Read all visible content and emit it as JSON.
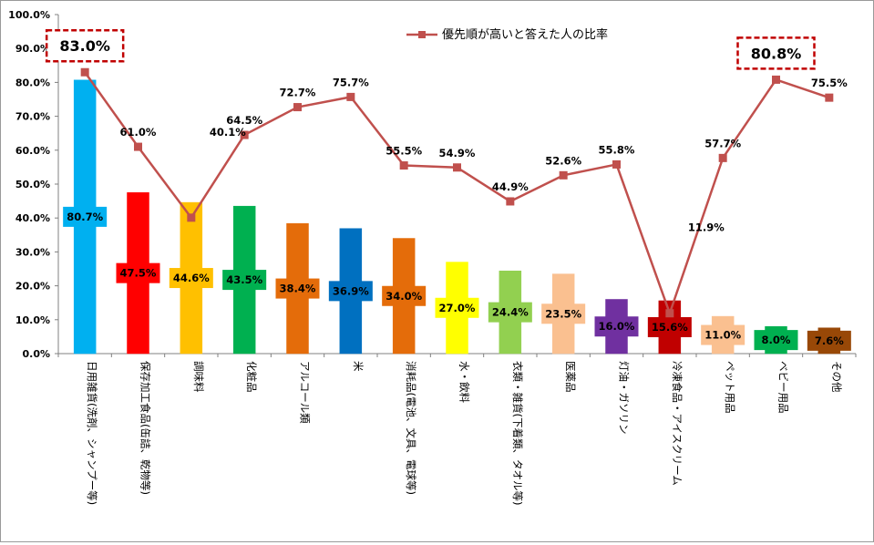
{
  "chart_data": {
    "type": "bar",
    "categories": [
      "日用雑貨(洗剤、シャンプー等)",
      "保存加工食品(缶詰、乾物等)",
      "調味料",
      "化粧品",
      "アルコール類",
      "米",
      "消耗品(電池、文具、電球等)",
      "水・飲料",
      "衣類・雑貨(下着類、タオル等)",
      "医薬品",
      "灯油・ガソリン",
      "冷凍食品・アイスクリーム",
      "ペット用品",
      "ベビー用品",
      "その他"
    ],
    "bar_values": [
      80.7,
      47.5,
      44.6,
      43.5,
      38.4,
      36.9,
      34.0,
      27.0,
      24.4,
      23.5,
      16.0,
      15.6,
      11.0,
      8.0,
      7.6
    ],
    "bar_labels": [
      "80.7%",
      "47.5%",
      "44.6%",
      "43.5%",
      "38.4%",
      "36.9%",
      "34.0%",
      "27.0%",
      "24.4%",
      "23.5%",
      "16.0%",
      "15.6%",
      "11.0%",
      "8.0%",
      "7.6%"
    ],
    "bar_colors": [
      "#00b0f0",
      "#ff0000",
      "#ffc000",
      "#00b050",
      "#e46c0a",
      "#0070c0",
      "#e46c0a",
      "#ffff00",
      "#92d050",
      "#fac090",
      "#7030a0",
      "#c00000",
      "#fac090",
      "#00b050",
      "#984807"
    ],
    "series": [
      {
        "name": "優先順が高いと答えた人の比率",
        "values": [
          83.0,
          61.0,
          40.1,
          64.5,
          72.7,
          75.7,
          55.5,
          54.9,
          44.9,
          52.6,
          55.8,
          11.9,
          57.7,
          80.8,
          75.5
        ],
        "labels": [
          "83.0%",
          "61.0%",
          "40.1%",
          "64.5%",
          "72.7%",
          "75.7%",
          "55.5%",
          "54.9%",
          "44.9%",
          "52.6%",
          "55.8%",
          "11.9%",
          "57.7%",
          "80.8%",
          "75.5%"
        ],
        "color": "#c0504d"
      }
    ],
    "highlighted_points": [
      0,
      13
    ],
    "callout_color": "#c00000",
    "y_ticks": [
      "0.0%",
      "10.0%",
      "20.0%",
      "30.0%",
      "40.0%",
      "50.0%",
      "60.0%",
      "70.0%",
      "80.0%",
      "90.0%",
      "100.0%"
    ],
    "ylim": [
      0,
      100
    ],
    "grid": false,
    "legend_position": "top-right",
    "title": "",
    "xlabel": "",
    "ylabel": ""
  }
}
